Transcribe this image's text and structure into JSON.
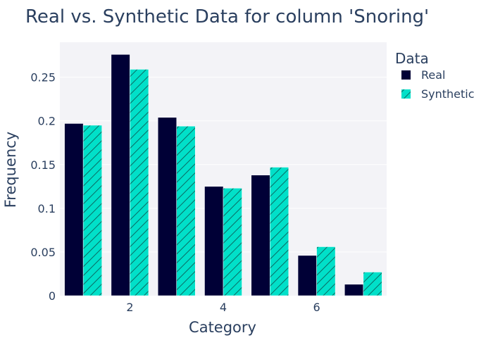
{
  "chart_data": {
    "type": "bar",
    "title": "Real vs. Synthetic Data for column 'Snoring'",
    "xlabel": "Category",
    "ylabel": "Frequency",
    "x": [
      1,
      2,
      3,
      4,
      5,
      6,
      7
    ],
    "xticks": [
      2,
      4,
      6
    ],
    "xlim": [
      0.5,
      7.5
    ],
    "yticks": [
      0,
      0.05,
      0.1,
      0.15,
      0.2,
      0.25
    ],
    "ytick_labels": [
      "0",
      "0.05",
      "0.1",
      "0.15",
      "0.2",
      "0.25"
    ],
    "ylim": [
      0,
      0.29
    ],
    "grid": true,
    "legend": {
      "title": "Data",
      "position": "right"
    },
    "series": [
      {
        "name": "Real",
        "color": "#000036",
        "pattern": "solid",
        "values": [
          0.197,
          0.276,
          0.204,
          0.125,
          0.138,
          0.046,
          0.013
        ]
      },
      {
        "name": "Synthetic",
        "color": "#01e0c9",
        "pattern": "diagonal-hatch",
        "values": [
          0.195,
          0.259,
          0.194,
          0.123,
          0.147,
          0.056,
          0.027
        ]
      }
    ]
  }
}
